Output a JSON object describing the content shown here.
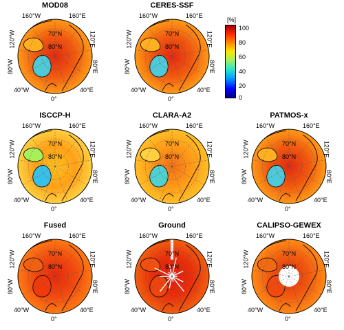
{
  "panels": [
    {
      "title": "MOD08"
    },
    {
      "title": "CERES-SSF"
    },
    {
      "title": "ISCCP-H"
    },
    {
      "title": "CLARA-A2"
    },
    {
      "title": "PATMOS-x"
    },
    {
      "title": "Fused"
    },
    {
      "title": "Ground"
    },
    {
      "title": "CALIPSO-GEWEX"
    }
  ],
  "grid_labels": {
    "lon_160w": "160°W",
    "lon_160e": "160°E",
    "lon_120w": "120°W",
    "lon_120e": "120°E",
    "lon_80w": "80°W",
    "lon_80e": "80°E",
    "lon_40w": "40°W",
    "lon_40e": "40°E",
    "lon_0": "0°",
    "lat_70n": "70°N",
    "lat_80n": "80°N"
  },
  "colorbar": {
    "unit": "[%]",
    "ticks": [
      "100",
      "80",
      "60",
      "40",
      "20",
      "0"
    ],
    "range": [
      0,
      100
    ],
    "colormap": "jet"
  },
  "colors": {
    "high": "#e8200c",
    "mid": "#ff9a10",
    "low": "#58d0e0",
    "ocean": "#f0600c",
    "coast": "#000000",
    "missing": "#ffffff"
  }
}
